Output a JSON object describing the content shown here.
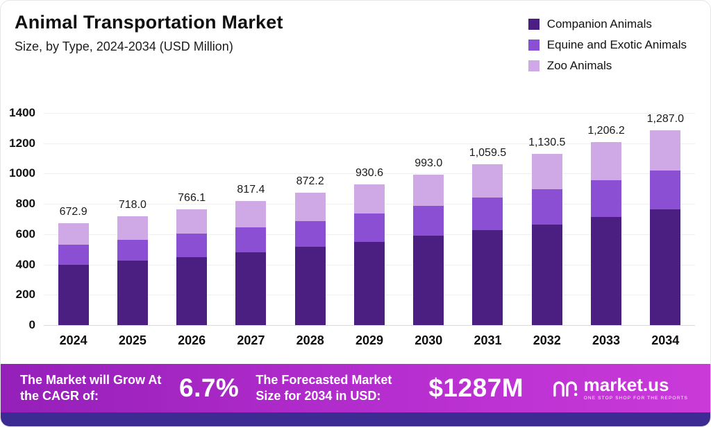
{
  "header": {
    "title": "Animal Transportation Market",
    "subtitle": "Size, by Type, 2024-2034 (USD Million)"
  },
  "legend": [
    {
      "label": "Companion Animals",
      "color": "#4b1e82"
    },
    {
      "label": "Equine and Exotic Animals",
      "color": "#8a4fd3"
    },
    {
      "label": "Zoo Animals",
      "color": "#cfa9e6"
    }
  ],
  "chart_data": {
    "type": "bar",
    "stacked": true,
    "title": "Animal Transportation Market Size, by Type, 2024-2034 (USD Million)",
    "categories": [
      "2024",
      "2025",
      "2026",
      "2027",
      "2028",
      "2029",
      "2030",
      "2031",
      "2032",
      "2033",
      "2034"
    ],
    "series": [
      {
        "name": "Companion Animals",
        "color": "#4b1e82",
        "values": [
          400,
          425,
          450,
          480,
          515,
          550,
          590,
          625,
          665,
          715,
          765
        ]
      },
      {
        "name": "Equine and Exotic Animals",
        "color": "#8a4fd3",
        "values": [
          130,
          140,
          155,
          165,
          170,
          185,
          195,
          215,
          230,
          240,
          255
        ]
      },
      {
        "name": "Zoo Animals",
        "color": "#cfa9e6",
        "values": [
          142.9,
          153.0,
          161.1,
          172.4,
          187.2,
          195.6,
          208.0,
          219.5,
          235.5,
          251.2,
          267.0
        ]
      }
    ],
    "totals": [
      672.9,
      718.0,
      766.1,
      817.4,
      872.2,
      930.6,
      993.0,
      1059.5,
      1130.5,
      1206.2,
      1287.0
    ],
    "totals_labels": [
      "672.9",
      "718.0",
      "766.1",
      "817.4",
      "872.2",
      "930.6",
      "993.0",
      "1,059.5",
      "1,130.5",
      "1,206.2",
      "1,287.0"
    ],
    "xlabel": "",
    "ylabel": "",
    "ylim": [
      0,
      1400
    ],
    "yticks": [
      0,
      200,
      400,
      600,
      800,
      1000,
      1200,
      1400
    ],
    "grid": true,
    "legend_position": "top-right"
  },
  "footer": {
    "cagr_label": "The Market will Grow At the CAGR of:",
    "cagr_value": "6.7%",
    "forecast_label": "The Forecasted Market Size for 2034 in USD:",
    "forecast_value": "$1287M",
    "brand": "market.us",
    "brand_tagline": "One Stop Shop For The Reports"
  }
}
